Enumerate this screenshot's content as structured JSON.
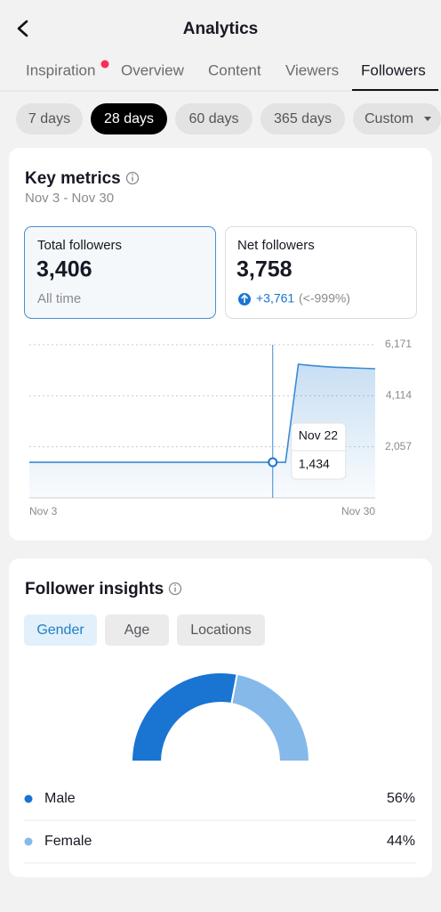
{
  "header": {
    "title": "Analytics"
  },
  "tabs": [
    "Inspiration",
    "Overview",
    "Content",
    "Viewers",
    "Followers"
  ],
  "date_ranges": [
    "7 days",
    "28 days",
    "60 days",
    "365 days",
    "Custom"
  ],
  "key_metrics": {
    "title": "Key metrics",
    "date_range": "Nov 3 - Nov 30",
    "total": {
      "label": "Total followers",
      "value": "3,406",
      "note": "All time"
    },
    "net": {
      "label": "Net followers",
      "value": "3,758",
      "change": "+3,761",
      "change_pct": "(<-999%)"
    }
  },
  "insights": {
    "title": "Follower insights",
    "tabs": [
      "Gender",
      "Age",
      "Locations"
    ]
  },
  "chart_data": [
    {
      "type": "line",
      "color": "#3a8bd4",
      "categories": [
        "Nov 3",
        null,
        null,
        null,
        null,
        null,
        null,
        null,
        null,
        null,
        null,
        null,
        null,
        null,
        null,
        null,
        null,
        null,
        null,
        null,
        null,
        null,
        null,
        null,
        null,
        null,
        null,
        "Nov 30"
      ],
      "values": [
        1434,
        1434,
        1434,
        1434,
        1434,
        1434,
        1434,
        1434,
        1434,
        1434,
        1434,
        1434,
        1434,
        1434,
        1434,
        1434,
        1434,
        1434,
        1434,
        1434,
        1434,
        5382,
        5330,
        5290,
        5260,
        5240,
        5220,
        5202
      ],
      "ylim": [
        0,
        6171
      ],
      "yticks": [
        {
          "value": 2057,
          "label": "2,057"
        },
        {
          "value": 4114,
          "label": "4,114"
        },
        {
          "value": 6171,
          "label": "6,171"
        }
      ],
      "grid": true,
      "tooltip": {
        "label": "Nov 22",
        "value": 1434,
        "value_label": "1,434"
      }
    },
    {
      "type": "pie",
      "categories": [
        "Male",
        "Female"
      ],
      "values": [
        56,
        44
      ],
      "value_labels": [
        "56%",
        "44%"
      ],
      "colors": [
        "#1a74d2",
        "#84b9ea"
      ]
    }
  ]
}
